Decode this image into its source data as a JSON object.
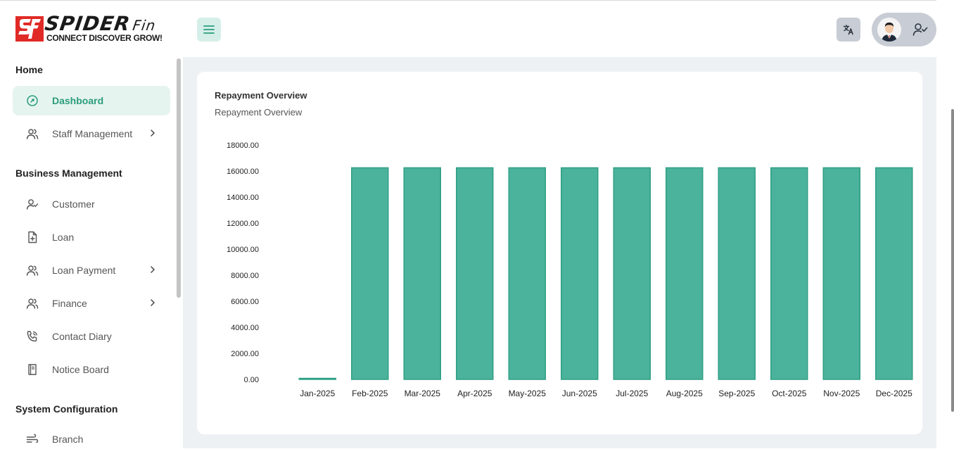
{
  "brand": {
    "name": "SPIDER",
    "name_suffix": "Fin",
    "tagline": "CONNECT DISCOVER GROW!",
    "color_red": "#e02a26"
  },
  "header": {
    "menu_icon": "hamburger-icon",
    "language_icon": "translate-icon",
    "user_icon": "user-check-icon"
  },
  "sidebar": {
    "sections": [
      {
        "title": "Home",
        "items": [
          {
            "label": "Dashboard",
            "icon": "dashboard-icon",
            "active": true,
            "has_children": false
          },
          {
            "label": "Staff Management",
            "icon": "users-icon",
            "active": false,
            "has_children": true
          }
        ]
      },
      {
        "title": "Business Management",
        "items": [
          {
            "label": "Customer",
            "icon": "user-check-icon",
            "active": false,
            "has_children": false
          },
          {
            "label": "Loan",
            "icon": "file-plus-icon",
            "active": false,
            "has_children": false
          },
          {
            "label": "Loan Payment",
            "icon": "users-icon",
            "active": false,
            "has_children": true
          },
          {
            "label": "Finance",
            "icon": "users-icon",
            "active": false,
            "has_children": true
          },
          {
            "label": "Contact Diary",
            "icon": "phone-icon",
            "active": false,
            "has_children": false
          },
          {
            "label": "Notice Board",
            "icon": "book-icon",
            "active": false,
            "has_children": false
          }
        ]
      },
      {
        "title": "System Configuration",
        "items": [
          {
            "label": "Branch",
            "icon": "wind-icon",
            "active": false,
            "has_children": false
          }
        ]
      }
    ]
  },
  "card": {
    "title": "Repayment Overview",
    "subtitle": "Repayment Overview"
  },
  "chart_data": {
    "type": "bar",
    "categories": [
      "Jan-2025",
      "Feb-2025",
      "Mar-2025",
      "Apr-2025",
      "May-2025",
      "Jun-2025",
      "Jul-2025",
      "Aug-2025",
      "Sep-2025",
      "Oct-2025",
      "Nov-2025",
      "Dec-2025"
    ],
    "values": [
      0,
      16250,
      16250,
      16250,
      16250,
      16250,
      16250,
      16250,
      16250,
      16250,
      16250,
      16250
    ],
    "y_ticks": [
      "0.00",
      "2000.00",
      "4000.00",
      "6000.00",
      "8000.00",
      "10000.00",
      "12000.00",
      "14000.00",
      "16000.00",
      "18000.00"
    ],
    "ylim": [
      0,
      18000
    ],
    "grid": false,
    "bar_color": "#4bb29b",
    "bar_stroke": "#2f9f84"
  }
}
